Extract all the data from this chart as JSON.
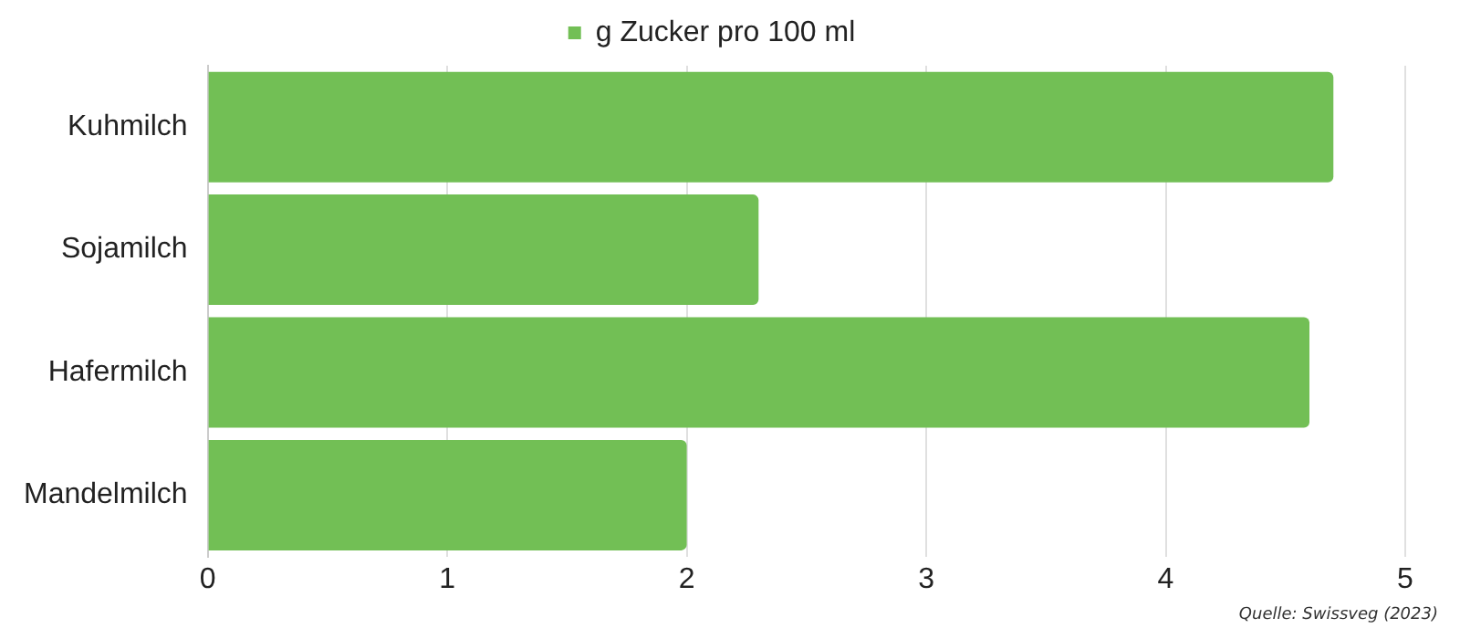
{
  "chart_data": {
    "type": "bar",
    "orientation": "horizontal",
    "categories": [
      "Kuhmilch",
      "Sojamilch",
      "Hafermilch",
      "Mandelmilch"
    ],
    "series": [
      {
        "name": "g Zucker pro 100 ml",
        "color": "#72bf55",
        "values": [
          4.7,
          2.3,
          4.6,
          2.0
        ]
      }
    ],
    "xlim": [
      0,
      5
    ],
    "xticks": [
      0,
      1,
      2,
      3,
      4,
      5
    ],
    "grid": "x",
    "legend": "top",
    "annotations": [
      "Quelle: Swissveg (2023)"
    ]
  }
}
